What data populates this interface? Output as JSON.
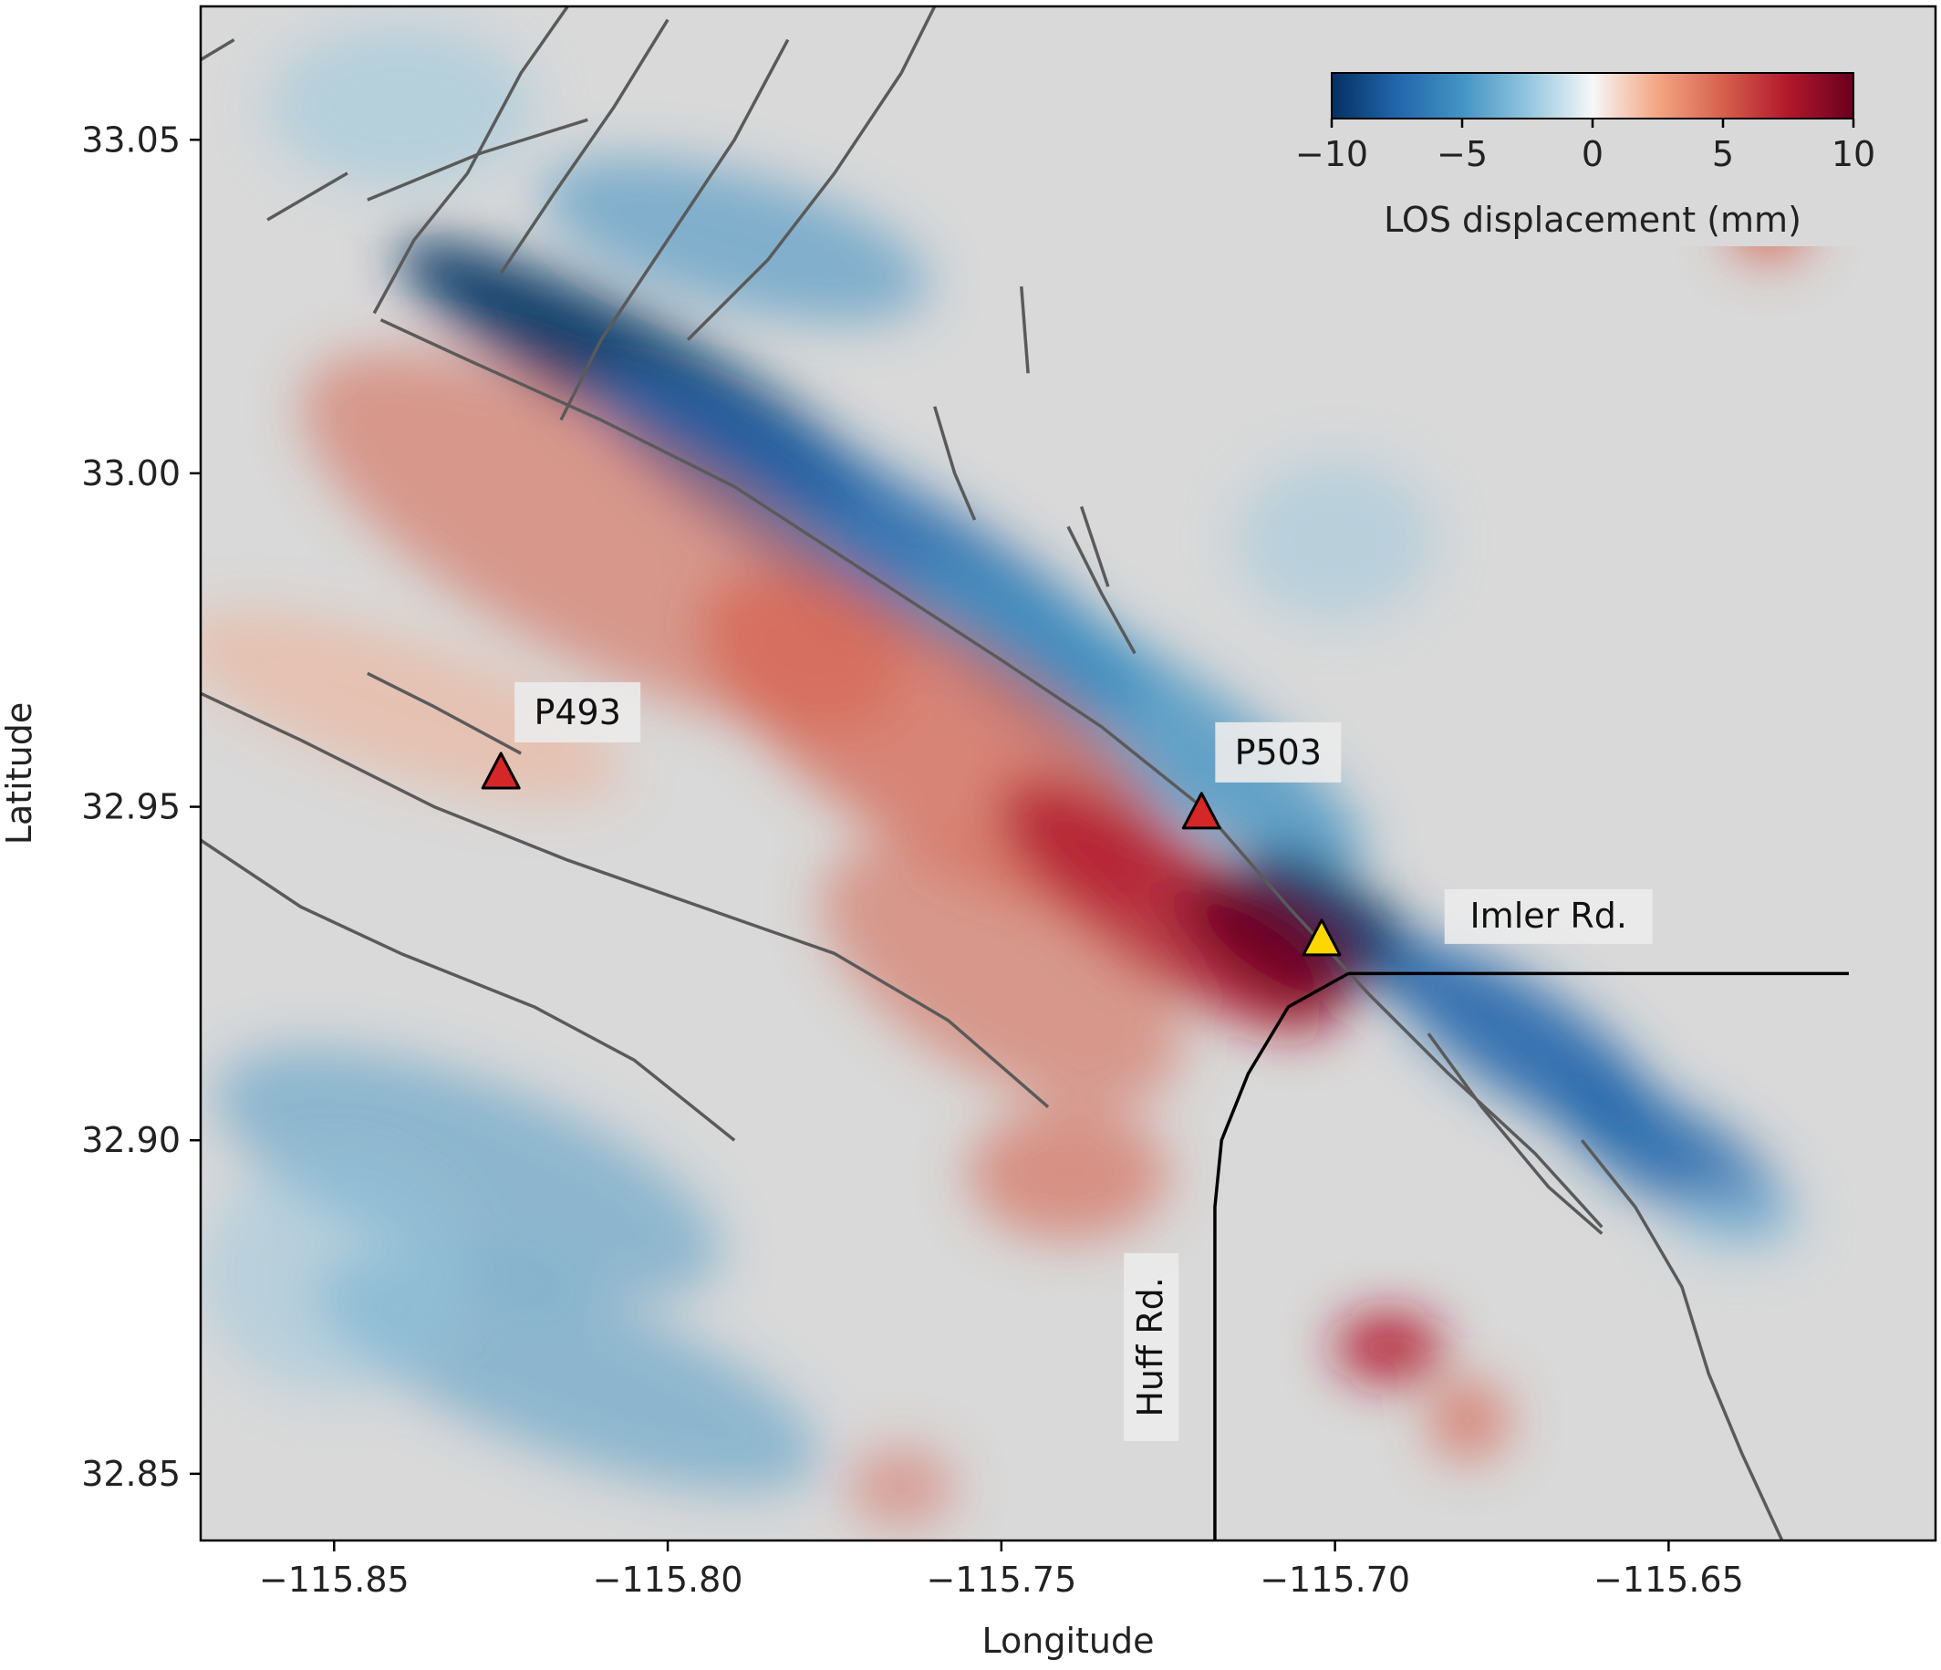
{
  "map": {
    "xlabel": "Longitude",
    "ylabel": "Latitude",
    "xlim": [
      -115.87,
      -115.61
    ],
    "ylim": [
      32.84,
      33.07
    ],
    "x_ticks": [
      {
        "value": -115.85,
        "label": "−115.85"
      },
      {
        "value": -115.8,
        "label": "−115.80"
      },
      {
        "value": -115.75,
        "label": "−115.75"
      },
      {
        "value": -115.7,
        "label": "−115.70"
      },
      {
        "value": -115.65,
        "label": "−115.65"
      }
    ],
    "y_ticks": [
      {
        "value": 33.05,
        "label": "33.05"
      },
      {
        "value": 33.0,
        "label": "33.00"
      },
      {
        "value": 32.95,
        "label": "32.95"
      },
      {
        "value": 32.9,
        "label": "32.90"
      },
      {
        "value": 32.85,
        "label": "32.85"
      }
    ],
    "background_color": "#d9d9d9",
    "colorbar": {
      "label": "LOS displacement (mm)",
      "range": [
        -10,
        10
      ],
      "ticks": [
        {
          "value": -10,
          "label": "−10"
        },
        {
          "value": -5,
          "label": "−5"
        },
        {
          "value": 0,
          "label": "0"
        },
        {
          "value": 5,
          "label": "5"
        },
        {
          "value": 10,
          "label": "10"
        }
      ],
      "colors": [
        "#053061",
        "#2166ac",
        "#4393c3",
        "#92c5de",
        "#f7f7f7",
        "#f4a582",
        "#d6604d",
        "#b2182b",
        "#67001f"
      ]
    },
    "stations": [
      {
        "name": "P493",
        "lon": -115.825,
        "lat": 32.955,
        "color": "#d62728"
      },
      {
        "name": "P503",
        "lon": -115.72,
        "lat": 32.949,
        "color": "#d62728"
      },
      {
        "name": "",
        "lon": -115.702,
        "lat": 32.93,
        "color": "#ffd700"
      }
    ],
    "roads": [
      {
        "name": "Imler Rd.",
        "label_lon": -115.668,
        "label_lat": 32.933,
        "path": [
          [
            -115.698,
            32.925
          ],
          [
            -115.623,
            32.925
          ]
        ]
      },
      {
        "name": "Huff Rd.",
        "label_lon": -115.727,
        "label_lat": 32.869,
        "path": [
          [
            -115.698,
            32.925
          ],
          [
            -115.707,
            32.92
          ],
          [
            -115.713,
            32.91
          ],
          [
            -115.717,
            32.9
          ],
          [
            -115.718,
            32.89
          ],
          [
            -115.718,
            32.84
          ]
        ]
      }
    ],
    "faults": [
      [
        [
          -115.843,
          33.023
        ],
        [
          -115.83,
          33.017
        ],
        [
          -115.81,
          33.008
        ],
        [
          -115.79,
          32.998
        ],
        [
          -115.77,
          32.985
        ],
        [
          -115.75,
          32.972
        ],
        [
          -115.735,
          32.962
        ],
        [
          -115.72,
          32.95
        ],
        [
          -115.707,
          32.935
        ],
        [
          -115.695,
          32.922
        ],
        [
          -115.683,
          32.91
        ],
        [
          -115.67,
          32.898
        ],
        [
          -115.66,
          32.887
        ]
      ],
      [
        [
          -115.663,
          32.9
        ],
        [
          -115.655,
          32.89
        ],
        [
          -115.648,
          32.878
        ],
        [
          -115.644,
          32.865
        ],
        [
          -115.639,
          32.853
        ],
        [
          -115.633,
          32.84
        ]
      ],
      [
        [
          -115.87,
          32.967
        ],
        [
          -115.855,
          32.96
        ],
        [
          -115.835,
          32.95
        ],
        [
          -115.815,
          32.942
        ],
        [
          -115.795,
          32.935
        ],
        [
          -115.775,
          32.928
        ],
        [
          -115.758,
          32.918
        ],
        [
          -115.743,
          32.905
        ]
      ],
      [
        [
          -115.87,
          32.945
        ],
        [
          -115.855,
          32.935
        ],
        [
          -115.84,
          32.928
        ],
        [
          -115.82,
          32.92
        ],
        [
          -115.805,
          32.912
        ],
        [
          -115.79,
          32.9
        ]
      ],
      [
        [
          -115.844,
          33.024
        ],
        [
          -115.838,
          33.035
        ],
        [
          -115.83,
          33.045
        ],
        [
          -115.822,
          33.06
        ],
        [
          -115.815,
          33.07
        ]
      ],
      [
        [
          -115.825,
          33.03
        ],
        [
          -115.817,
          33.042
        ],
        [
          -115.808,
          33.055
        ],
        [
          -115.8,
          33.068
        ]
      ],
      [
        [
          -115.816,
          33.008
        ],
        [
          -115.81,
          33.02
        ],
        [
          -115.8,
          33.035
        ],
        [
          -115.79,
          33.05
        ],
        [
          -115.782,
          33.065
        ]
      ],
      [
        [
          -115.797,
          33.02
        ],
        [
          -115.785,
          33.032
        ],
        [
          -115.775,
          33.045
        ],
        [
          -115.765,
          33.06
        ],
        [
          -115.76,
          33.07
        ]
      ],
      [
        [
          -115.812,
          33.053
        ],
        [
          -115.828,
          33.048
        ],
        [
          -115.845,
          33.041
        ]
      ],
      [
        [
          -115.76,
          33.01
        ],
        [
          -115.757,
          33.0
        ],
        [
          -115.754,
          32.993
        ]
      ],
      [
        [
          -115.74,
          32.992
        ],
        [
          -115.735,
          32.982
        ],
        [
          -115.73,
          32.973
        ]
      ],
      [
        [
          -115.738,
          32.995
        ],
        [
          -115.734,
          32.983
        ]
      ],
      [
        [
          -115.747,
          33.028
        ],
        [
          -115.746,
          33.015
        ]
      ],
      [
        [
          -115.87,
          33.062
        ],
        [
          -115.865,
          33.065
        ]
      ],
      [
        [
          -115.86,
          33.038
        ],
        [
          -115.848,
          33.045
        ]
      ],
      [
        [
          -115.822,
          32.958
        ],
        [
          -115.835,
          32.965
        ],
        [
          -115.845,
          32.97
        ]
      ],
      [
        [
          -115.686,
          32.916
        ],
        [
          -115.678,
          32.905
        ],
        [
          -115.668,
          32.893
        ],
        [
          -115.66,
          32.886
        ]
      ]
    ],
    "fields": [
      {
        "lon": -115.805,
        "lat": 33.015,
        "rx": 0.04,
        "ry": 0.008,
        "rot": 28,
        "value": -9,
        "opacity": 0.9
      },
      {
        "lon": -115.77,
        "lat": 32.99,
        "rx": 0.048,
        "ry": 0.01,
        "rot": 30,
        "value": -8,
        "opacity": 0.85
      },
      {
        "lon": -115.73,
        "lat": 32.963,
        "rx": 0.04,
        "ry": 0.01,
        "rot": 32,
        "value": -6,
        "opacity": 0.8
      },
      {
        "lon": -115.7,
        "lat": 32.933,
        "rx": 0.016,
        "ry": 0.006,
        "rot": 35,
        "value": -10,
        "opacity": 0.95
      },
      {
        "lon": -115.672,
        "lat": 32.915,
        "rx": 0.024,
        "ry": 0.008,
        "rot": 33,
        "value": -8,
        "opacity": 0.9
      },
      {
        "lon": -115.65,
        "lat": 32.898,
        "rx": 0.02,
        "ry": 0.007,
        "rot": 30,
        "value": -7,
        "opacity": 0.85
      },
      {
        "lon": -115.79,
        "lat": 33.035,
        "rx": 0.03,
        "ry": 0.01,
        "rot": 15,
        "value": -4,
        "opacity": 0.6
      },
      {
        "lon": -115.84,
        "lat": 33.055,
        "rx": 0.02,
        "ry": 0.012,
        "rot": 0,
        "value": -2,
        "opacity": 0.5
      },
      {
        "lon": -115.81,
        "lat": 32.99,
        "rx": 0.05,
        "ry": 0.018,
        "rot": 28,
        "value": 4,
        "opacity": 0.55
      },
      {
        "lon": -115.76,
        "lat": 32.96,
        "rx": 0.04,
        "ry": 0.016,
        "rot": 32,
        "value": 6,
        "opacity": 0.7
      },
      {
        "lon": -115.725,
        "lat": 32.935,
        "rx": 0.03,
        "ry": 0.01,
        "rot": 35,
        "value": 8,
        "opacity": 0.85
      },
      {
        "lon": -115.71,
        "lat": 32.93,
        "rx": 0.015,
        "ry": 0.007,
        "rot": 35,
        "value": 10,
        "opacity": 0.9
      },
      {
        "lon": -115.75,
        "lat": 32.925,
        "rx": 0.03,
        "ry": 0.015,
        "rot": 30,
        "value": 5,
        "opacity": 0.55
      },
      {
        "lon": -115.74,
        "lat": 32.895,
        "rx": 0.015,
        "ry": 0.01,
        "rot": 0,
        "value": 6,
        "opacity": 0.6
      },
      {
        "lon": -115.84,
        "lat": 32.965,
        "rx": 0.035,
        "ry": 0.01,
        "rot": 18,
        "value": 3,
        "opacity": 0.45
      },
      {
        "lon": -115.83,
        "lat": 32.895,
        "rx": 0.04,
        "ry": 0.014,
        "rot": 20,
        "value": -4,
        "opacity": 0.5
      },
      {
        "lon": -115.815,
        "lat": 32.865,
        "rx": 0.04,
        "ry": 0.012,
        "rot": 20,
        "value": -5,
        "opacity": 0.5
      },
      {
        "lon": -115.85,
        "lat": 32.88,
        "rx": 0.02,
        "ry": 0.018,
        "rot": 0,
        "value": -3,
        "opacity": 0.45
      },
      {
        "lon": -115.692,
        "lat": 32.869,
        "rx": 0.008,
        "ry": 0.005,
        "rot": 0,
        "value": 8,
        "opacity": 0.95
      },
      {
        "lon": -115.635,
        "lat": 33.037,
        "rx": 0.006,
        "ry": 0.005,
        "rot": 0,
        "value": 6,
        "opacity": 0.9
      },
      {
        "lon": -115.68,
        "lat": 32.858,
        "rx": 0.006,
        "ry": 0.006,
        "rot": 0,
        "value": 5,
        "opacity": 0.7
      },
      {
        "lon": -115.765,
        "lat": 32.848,
        "rx": 0.008,
        "ry": 0.006,
        "rot": 0,
        "value": 4,
        "opacity": 0.5
      },
      {
        "lon": -115.64,
        "lat": 32.888,
        "rx": 0.01,
        "ry": 0.005,
        "rot": 0,
        "value": -3,
        "opacity": 0.6
      },
      {
        "lon": -115.7,
        "lat": 32.99,
        "rx": 0.015,
        "ry": 0.012,
        "rot": 0,
        "value": -2,
        "opacity": 0.45
      }
    ]
  }
}
